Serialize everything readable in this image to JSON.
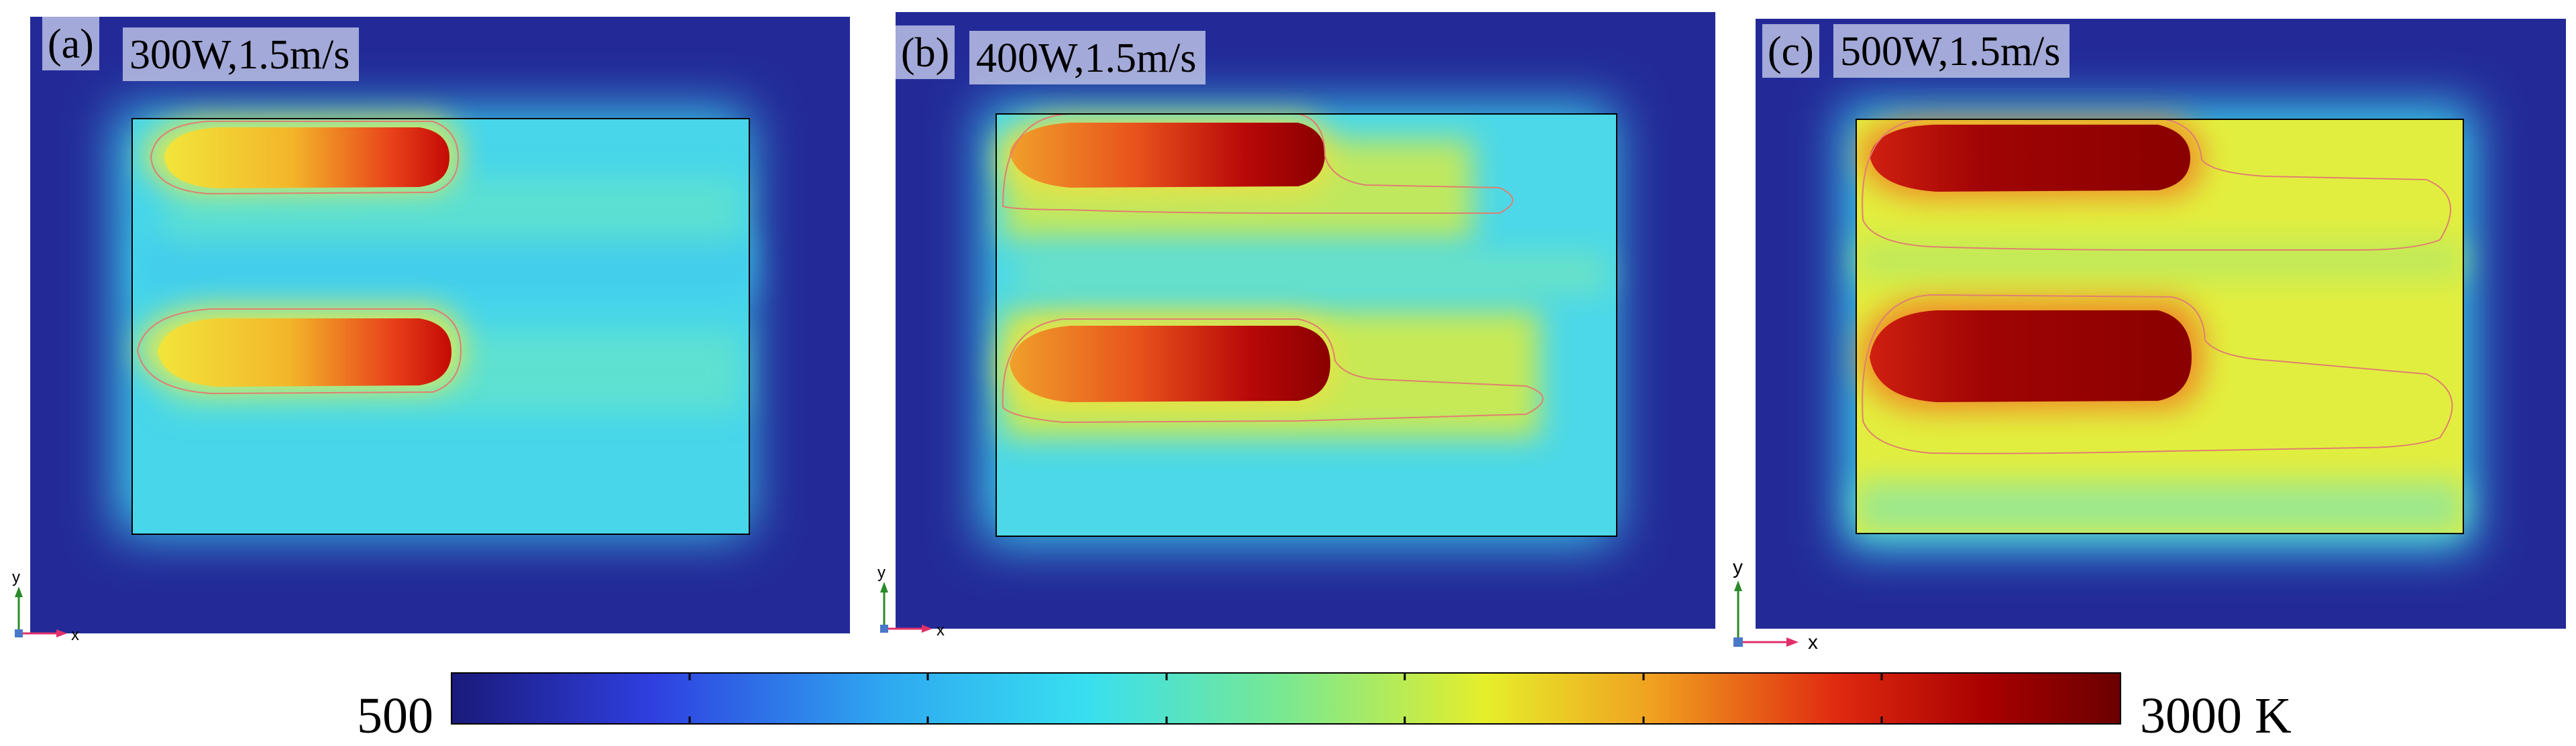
{
  "panels": [
    {
      "tag": "(a)",
      "title": "300W,1.5m/s"
    },
    {
      "tag": "(b)",
      "title": "400W,1.5m/s"
    },
    {
      "tag": "(c)",
      "title": "500W,1.5m/s"
    }
  ],
  "axis_labels": {
    "x": "x",
    "y": "y"
  },
  "colorbar": {
    "min_label": "500",
    "max_label": "3000 K",
    "min": 500,
    "max": 3000,
    "stops": [
      "#1a1a7a",
      "#2f3fe0",
      "#2ea8f0",
      "#38dff0",
      "#7ae890",
      "#e6ee2a",
      "#f0a020",
      "#e02a10",
      "#8a0000",
      "#6a0000"
    ]
  },
  "colors": {
    "background_blue": "#242c9a",
    "region_cyan": "#4ee0e8",
    "hot_yellow": "#f0ec30",
    "hot_red": "#c00000",
    "isoline": "#e08070"
  }
}
